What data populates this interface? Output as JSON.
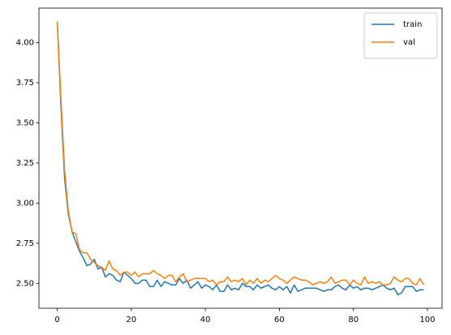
{
  "chart_data": {
    "type": "line",
    "x": [
      0,
      1,
      2,
      3,
      4,
      5,
      6,
      7,
      8,
      9,
      10,
      11,
      12,
      13,
      14,
      15,
      16,
      17,
      18,
      19,
      20,
      21,
      22,
      23,
      24,
      25,
      26,
      27,
      28,
      29,
      30,
      31,
      32,
      33,
      34,
      35,
      36,
      37,
      38,
      39,
      40,
      41,
      42,
      43,
      44,
      45,
      46,
      47,
      48,
      49,
      50,
      51,
      52,
      53,
      54,
      55,
      56,
      57,
      58,
      59,
      60,
      61,
      62,
      63,
      64,
      65,
      66,
      67,
      68,
      69,
      70,
      71,
      72,
      73,
      74,
      75,
      76,
      77,
      78,
      79,
      80,
      81,
      82,
      83,
      84,
      85,
      86,
      87,
      88,
      89,
      90,
      91,
      92,
      93,
      94,
      95,
      96,
      97,
      98,
      99
    ],
    "series": [
      {
        "name": "train",
        "color": "#1f77b4",
        "values": [
          4.13,
          3.6,
          3.15,
          2.93,
          2.82,
          2.76,
          2.7,
          2.66,
          2.61,
          2.62,
          2.65,
          2.59,
          2.6,
          2.54,
          2.56,
          2.55,
          2.52,
          2.51,
          2.57,
          2.55,
          2.53,
          2.5,
          2.5,
          2.52,
          2.52,
          2.48,
          2.48,
          2.52,
          2.48,
          2.51,
          2.5,
          2.49,
          2.49,
          2.53,
          2.5,
          2.52,
          2.47,
          2.49,
          2.51,
          2.47,
          2.49,
          2.48,
          2.46,
          2.49,
          2.45,
          2.45,
          2.49,
          2.46,
          2.47,
          2.46,
          2.5,
          2.48,
          2.48,
          2.46,
          2.49,
          2.47,
          2.48,
          2.49,
          2.47,
          2.46,
          2.48,
          2.46,
          2.48,
          2.44,
          2.49,
          2.45,
          2.46,
          2.47,
          2.47,
          2.47,
          2.47,
          2.46,
          2.45,
          2.46,
          2.46,
          2.48,
          2.49,
          2.47,
          2.46,
          2.49,
          2.47,
          2.48,
          2.46,
          2.47,
          2.47,
          2.46,
          2.47,
          2.48,
          2.49,
          2.47,
          2.46,
          2.47,
          2.43,
          2.44,
          2.48,
          2.48,
          2.48,
          2.45,
          2.46,
          2.46
        ]
      },
      {
        "name": "val",
        "color": "#ff7f0e",
        "values": [
          4.13,
          3.65,
          3.2,
          2.95,
          2.82,
          2.81,
          2.71,
          2.69,
          2.69,
          2.65,
          2.63,
          2.61,
          2.6,
          2.58,
          2.64,
          2.59,
          2.58,
          2.55,
          2.57,
          2.57,
          2.55,
          2.57,
          2.54,
          2.56,
          2.56,
          2.56,
          2.58,
          2.56,
          2.55,
          2.53,
          2.55,
          2.55,
          2.51,
          2.54,
          2.56,
          2.51,
          2.52,
          2.53,
          2.53,
          2.53,
          2.53,
          2.51,
          2.52,
          2.49,
          2.51,
          2.51,
          2.54,
          2.51,
          2.52,
          2.51,
          2.53,
          2.49,
          2.52,
          2.5,
          2.53,
          2.5,
          2.52,
          2.51,
          2.53,
          2.55,
          2.53,
          2.52,
          2.5,
          2.52,
          2.54,
          2.53,
          2.52,
          2.52,
          2.51,
          2.49,
          2.5,
          2.51,
          2.5,
          2.51,
          2.54,
          2.5,
          2.51,
          2.52,
          2.52,
          2.49,
          2.52,
          2.5,
          2.49,
          2.54,
          2.5,
          2.51,
          2.5,
          2.51,
          2.49,
          2.49,
          2.5,
          2.54,
          2.52,
          2.51,
          2.53,
          2.53,
          2.5,
          2.49,
          2.53,
          2.49
        ]
      }
    ],
    "xlim": [
      -4.95,
      103.95
    ],
    "xticks": [
      0,
      20,
      40,
      60,
      80,
      100
    ],
    "ylim": [
      2.345,
      4.215
    ],
    "yticks": [
      {
        "value": 2.5,
        "label": "2.50"
      },
      2.75,
      {
        "value": 3.0,
        "label": "3.00"
      },
      3.25,
      {
        "value": 3.5,
        "label": "3.50"
      },
      3.75,
      {
        "value": 4.0,
        "label": "4.00"
      }
    ],
    "grid": false,
    "legend": "upper right"
  }
}
